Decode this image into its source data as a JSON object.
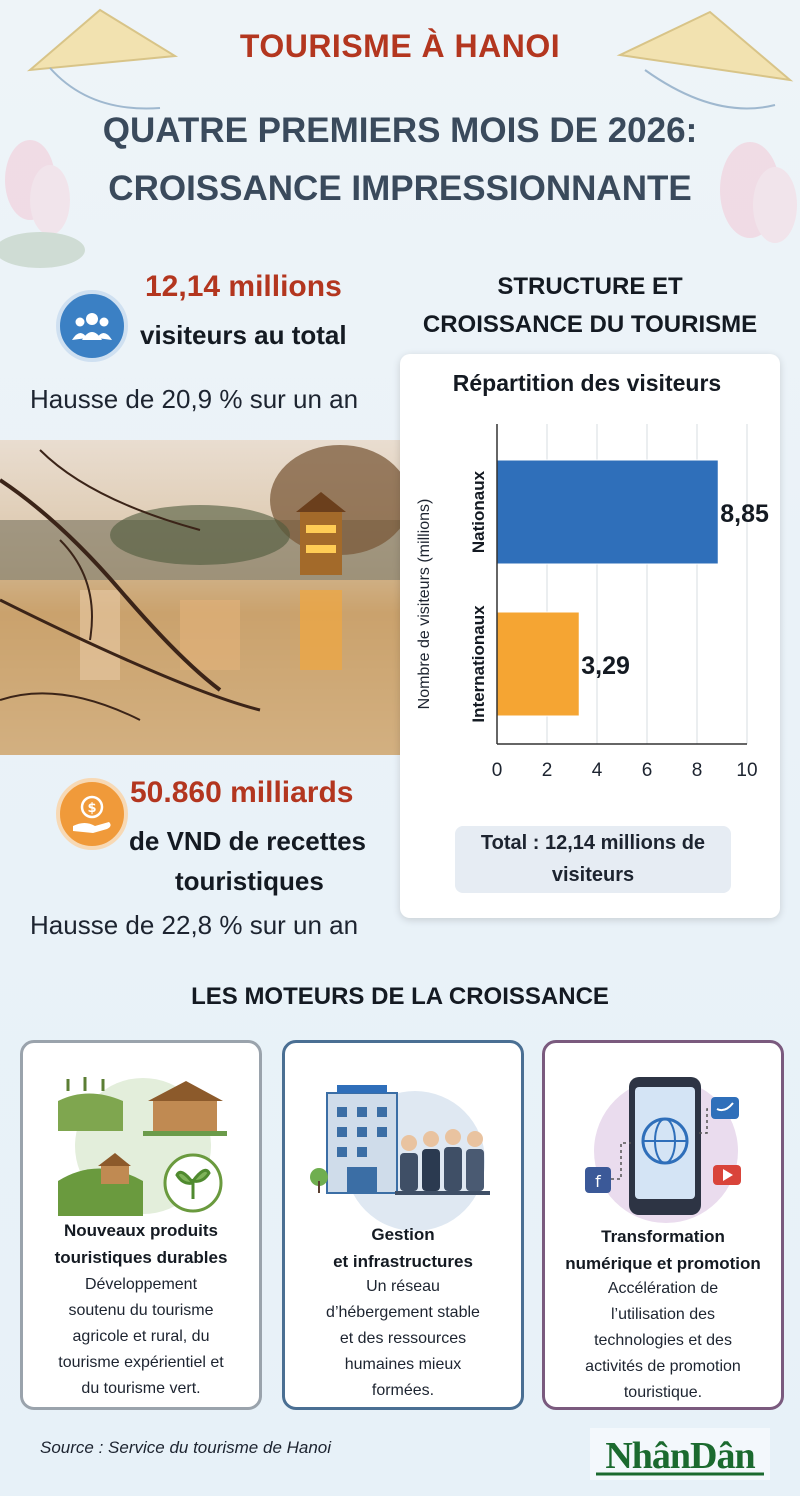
{
  "header": {
    "title": "TOURISME À HANOI",
    "subtitle_line1": "QUATRE PREMIERS MOIS DE 2026:",
    "subtitle_line2": "CROISSANCE IMPRESSIONNANTE"
  },
  "visitors": {
    "number": "12,14 millions",
    "label": "visiteurs au total",
    "growth": "Hausse de 20,9 % sur un an",
    "icon": "people-icon"
  },
  "revenue": {
    "number": "50.860 milliards",
    "label_line1": "de VND de recettes",
    "label_line2": "touristiques",
    "growth": "Hausse de 22,8 % sur un an",
    "icon": "money-hand-icon"
  },
  "structure": {
    "title_line1": "STRUCTURE ET",
    "title_line2": "CROISSANCE DU TOURISME"
  },
  "chart_data": {
    "type": "bar",
    "orientation": "horizontal",
    "title": "Répartition des visiteurs",
    "ylabel": "Nombre de visiteurs (millions)",
    "categories": [
      "Nationaux",
      "Internationaux"
    ],
    "values": [
      8.85,
      3.29
    ],
    "value_labels": [
      "8,85",
      "3,29"
    ],
    "colors": [
      "#2f6fba",
      "#f5a533"
    ],
    "xlim": [
      0,
      10
    ],
    "xticks": [
      "0",
      "2",
      "4",
      "6",
      "8",
      "10"
    ],
    "grid": true,
    "total_line1": "Total : 12,14 millions de",
    "total_line2": "visiteurs"
  },
  "drivers": {
    "title": "LES MOTEURS DE LA CROISSANCE",
    "cards": [
      {
        "title_line1": "Nouveaux produits",
        "title_line2": "touristiques durables",
        "text": [
          "Développement",
          "soutenu du tourisme",
          "agricole et rural, du",
          "tourisme expérientiel et",
          "du tourisme vert."
        ],
        "border": "#9aa3ac",
        "icon": "farm-house-icon"
      },
      {
        "title_line1": "Gestion",
        "title_line2": "et infrastructures",
        "text": [
          "Un réseau",
          "d’hébergement stable",
          "et des ressources",
          "humaines mieux",
          "formées."
        ],
        "border": "#4a6f93",
        "icon": "hotel-staff-icon"
      },
      {
        "title_line1": "Transformation",
        "title_line2": "numérique et promotion",
        "text": [
          "Accélération de",
          "l’utilisation des",
          "technologies et des",
          "activités de promotion",
          "touristique."
        ],
        "border": "#7a5a7e",
        "icon": "smartphone-social-icon"
      }
    ]
  },
  "footer": {
    "source": "Source : Service du tourisme de Hanoi",
    "logo": "NhânDân"
  }
}
